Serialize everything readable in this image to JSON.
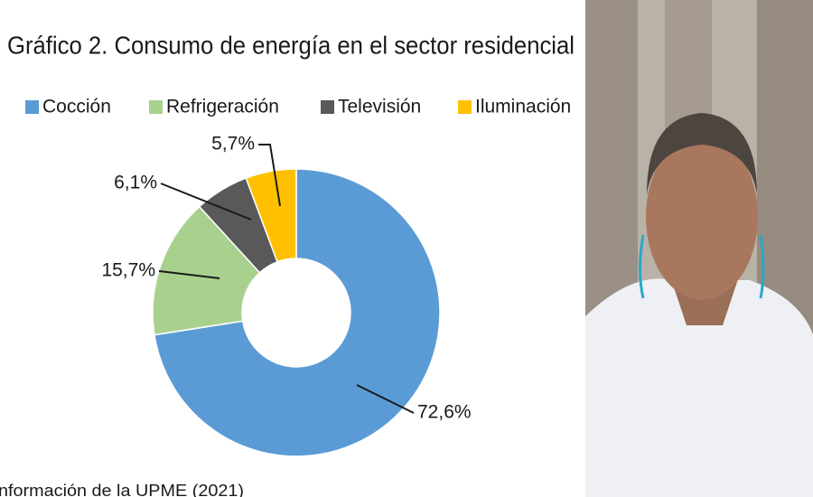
{
  "chart_data": {
    "type": "pie",
    "donut": true,
    "title": "Gráfico 2. Consumo de energía en el sector residencial",
    "categories": [
      "Cocción",
      "Refrigeración",
      "Televisión",
      "Iluminación"
    ],
    "values": [
      72.6,
      15.7,
      6.1,
      5.7
    ],
    "value_labels": [
      "72,6%",
      "15,7%",
      "6,1%",
      "5,7%"
    ],
    "colors": [
      "#5b9bd5",
      "#a9d18e",
      "#595959",
      "#ffc000"
    ],
    "legend": "top",
    "source": "nformación de la UPME (2021)"
  }
}
